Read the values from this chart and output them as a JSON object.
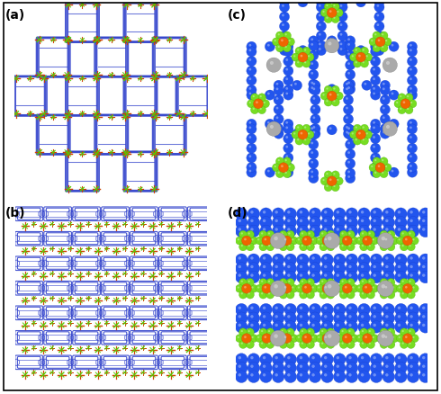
{
  "figsize": [
    4.9,
    4.39
  ],
  "dpi": 100,
  "background": "#ffffff",
  "border_color": "#000000",
  "border_width": 1.0,
  "labels": [
    "(a)",
    "(b)",
    "(c)",
    "(d)"
  ],
  "label_fontsize": 10,
  "label_bold": true,
  "label_color": "#000000",
  "wireframe_blue": "#3344cc",
  "wireframe_blue2": "#4455dd",
  "pf6_orange": "#cc4400",
  "pf6_green": "#55cc00",
  "spacefill_blue": "#2255ee",
  "spacefill_blue_dark": "#1133bb",
  "spacefill_green": "#77dd22",
  "spacefill_green_dark": "#44aa00",
  "spacefill_orange": "#ee6600",
  "spacefill_orange_dark": "#cc3300",
  "spacefill_gray": "#aaaaaa",
  "spacefill_gray_dark": "#777777"
}
